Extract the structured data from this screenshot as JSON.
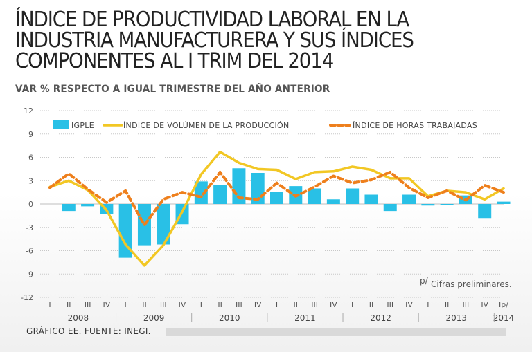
{
  "chart_data": {
    "type": "bar-line",
    "title_lines": [
      "ÍNDICE DE PRODUCTIVIDAD LABORAL EN LA",
      "INDUSTRIA MANUFACTURERA Y SUS ÍNDICES",
      "COMPONENTES AL I TRIM DEL 2014"
    ],
    "subtitle": "VAR % RESPECTO A IGUAL TRIMESTRE DEL AÑO ANTERIOR",
    "ylim": [
      -12,
      12
    ],
    "yticks": [
      12,
      9,
      6,
      3,
      0,
      -3,
      -6,
      -9,
      -12
    ],
    "quarters": [
      "I",
      "II",
      "III",
      "IV",
      "I",
      "II",
      "III",
      "IV",
      "I",
      "II",
      "III",
      "IV",
      "I",
      "II",
      "III",
      "IV",
      "I",
      "II",
      "III",
      "IV",
      "I",
      "II",
      "III",
      "IV",
      "Ip/"
    ],
    "years": [
      {
        "label": "2008",
        "start": 0
      },
      {
        "label": "2009",
        "start": 4
      },
      {
        "label": "2010",
        "start": 8
      },
      {
        "label": "2011",
        "start": 12
      },
      {
        "label": "2012",
        "start": 16
      },
      {
        "label": "2013",
        "start": 20
      },
      {
        "label": "2014",
        "start": 24
      }
    ],
    "series": [
      {
        "name": "IGPLE",
        "kind": "bar",
        "color": "#29c0e6",
        "values": [
          0,
          -0.9,
          -0.3,
          -1.3,
          -6.9,
          -5.3,
          -5.2,
          -2.6,
          2.9,
          2.4,
          4.6,
          4.0,
          1.6,
          2.3,
          2.0,
          0.6,
          2.0,
          1.2,
          -0.9,
          1.2,
          -0.2,
          -0.1,
          1.1,
          -1.8,
          0.3
        ]
      },
      {
        "name": "ÍNDICE DE VOLÚMEN DE LA PRODUCCIÓN",
        "kind": "line",
        "color": "#f2c724",
        "values": [
          2.2,
          3.0,
          1.8,
          -0.8,
          -5.2,
          -7.9,
          -5.3,
          -1.0,
          3.8,
          6.7,
          5.3,
          4.5,
          4.4,
          3.2,
          4.1,
          4.2,
          4.8,
          4.4,
          3.3,
          3.3,
          1.0,
          1.7,
          1.5,
          0.6,
          2.0
        ]
      },
      {
        "name": "ÍNDICE DE HORAS TRABAJADAS",
        "kind": "line-dashed",
        "color": "#ee7f1c",
        "values": [
          2.1,
          3.9,
          1.9,
          0.2,
          1.7,
          -2.7,
          0.6,
          1.5,
          0.9,
          4.1,
          0.8,
          0.6,
          2.7,
          1.0,
          2.2,
          3.6,
          2.7,
          3.1,
          4.1,
          2.1,
          0.8,
          1.7,
          0.5,
          2.4,
          1.5
        ]
      }
    ],
    "note_super": "p/",
    "note": "Cifras preliminares."
  },
  "footer": {
    "source": "GRÁFICO EE. FUENTE: INEGI."
  }
}
